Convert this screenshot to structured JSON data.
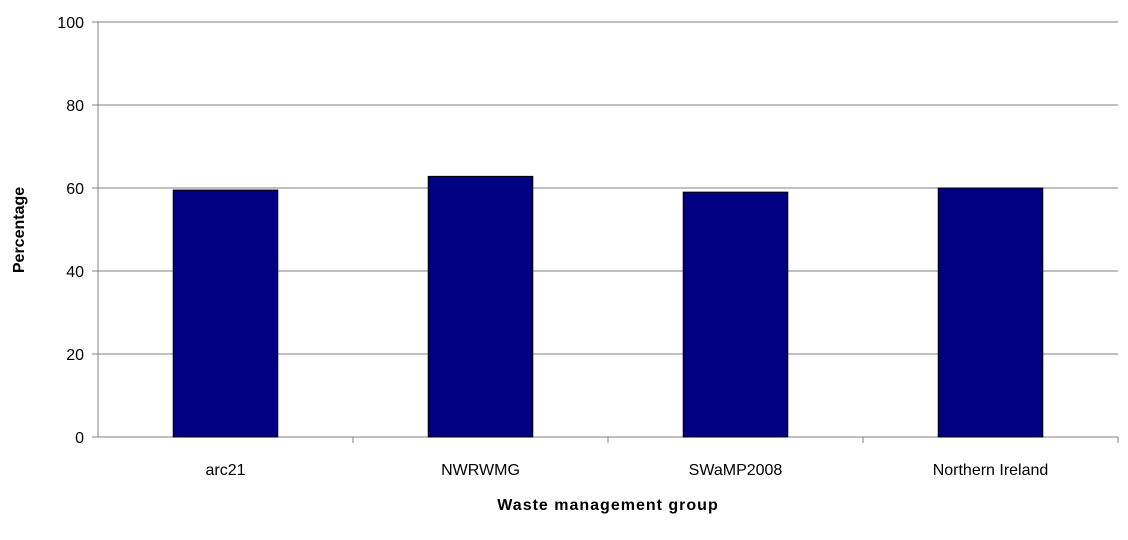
{
  "chart_data": {
    "type": "bar",
    "title": "",
    "xlabel": "Waste management group",
    "ylabel": "Percentage",
    "categories": [
      "arc21",
      "NWRWMG",
      "SWaMP2008",
      "Northern Ireland"
    ],
    "values": [
      59.5,
      62.8,
      59.0,
      60.0
    ],
    "ylim": [
      0,
      100
    ],
    "yticks": [
      "0",
      "20",
      "40",
      "60",
      "80",
      "100"
    ],
    "grid": true,
    "legend": "none",
    "bar_color": "#000080"
  }
}
